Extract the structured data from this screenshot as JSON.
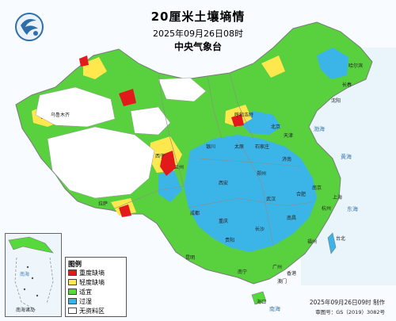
{
  "header": {
    "title": "20厘米土壤墒情",
    "date": "2025年09月26日08时",
    "issuer": "中央气象台"
  },
  "legend": {
    "title": "图例",
    "items": [
      {
        "label": "重度缺墒",
        "color": "#e31a1c"
      },
      {
        "label": "轻度缺墒",
        "color": "#ffe84d"
      },
      {
        "label": "适宜",
        "color": "#56d93a"
      },
      {
        "label": "过湿",
        "color": "#3bb5e8"
      },
      {
        "label": "无资料区",
        "color": "#ffffff"
      }
    ]
  },
  "footer": {
    "issue_time": "2025年09月26日09时 制作",
    "review": "审图号：GS（2019）3082号"
  },
  "inset": {
    "caption": "南海诸岛",
    "sea": "南海"
  },
  "seas": [
    "渤海",
    "黄海",
    "东海",
    "南海"
  ],
  "cities": [
    "北京",
    "天津",
    "石家庄",
    "太原",
    "呼和浩特",
    "沈阳",
    "长春",
    "哈尔滨",
    "济南",
    "郑州",
    "西安",
    "兰州",
    "西宁",
    "银川",
    "乌鲁木齐",
    "拉萨",
    "成都",
    "重庆",
    "武汉",
    "长沙",
    "南昌",
    "合肥",
    "南京",
    "上海",
    "杭州",
    "福州",
    "台北",
    "广州",
    "南宁",
    "昆明",
    "贵阳",
    "海口",
    "香港",
    "澳门"
  ],
  "icons": {
    "logo": "cma-logo-icon",
    "compass": "none"
  }
}
